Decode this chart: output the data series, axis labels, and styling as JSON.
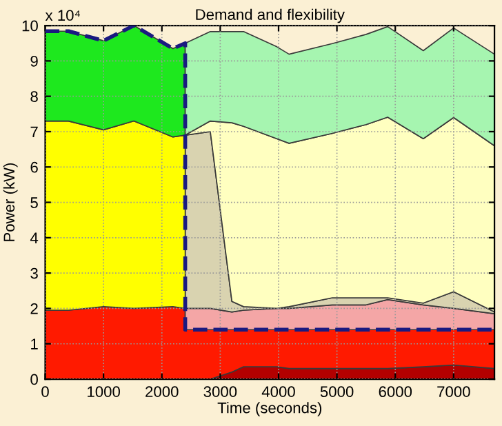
{
  "chart_data": {
    "type": "area",
    "title": "Demand and flexibility",
    "xlabel": "Time (seconds)",
    "ylabel": "Power (kW)",
    "annotations": [
      "x 10⁴"
    ],
    "stacked": true,
    "x": [
      0,
      400,
      1000,
      1520,
      2190,
      2400,
      2400,
      2830,
      3200,
      3400,
      3970,
      4180,
      4920,
      5500,
      5870,
      6480,
      7000,
      7700
    ],
    "series": [
      {
        "color": "#b30000",
        "values": [
          null,
          null,
          null,
          null,
          null,
          null,
          0,
          0,
          0.2,
          0.35,
          0.35,
          0.3,
          0.3,
          0.3,
          0.3,
          0.35,
          0.4,
          0.3
        ]
      },
      {
        "color": "#ff1a00",
        "values": [
          1.95,
          1.95,
          2.05,
          2.0,
          2.05,
          2.0,
          1.4,
          1.4,
          1.2,
          1.05,
          1.05,
          1.1,
          1.1,
          1.1,
          1.1,
          1.05,
          1.0,
          1.1
        ]
      },
      {
        "color": "#f4a6a6",
        "values": [
          null,
          null,
          null,
          null,
          null,
          null,
          0.6,
          0.6,
          0.5,
          0.55,
          0.6,
          0.6,
          0.7,
          0.7,
          0.85,
          0.7,
          0.6,
          0.45
        ]
      },
      {
        "color": "#d9d3b0",
        "values": [
          null,
          null,
          null,
          null,
          null,
          null,
          4.9,
          5.0,
          0.3,
          0.1,
          0.0,
          0.05,
          0.2,
          0.2,
          0.05,
          0.05,
          0.47,
          0.05
        ]
      },
      {
        "color": "#ffff00",
        "values": [
          5.35,
          5.35,
          5.0,
          5.3,
          4.8,
          4.9,
          null,
          null,
          null,
          null,
          null,
          null,
          null,
          null,
          null,
          null,
          null,
          null
        ]
      },
      {
        "color": "#ffffc0",
        "values": [
          null,
          null,
          null,
          null,
          null,
          null,
          0,
          0.3,
          5.05,
          5.1,
          4.8,
          4.62,
          4.65,
          4.9,
          5.11,
          4.65,
          4.93,
          4.7
        ]
      },
      {
        "color": "#1ee81e",
        "values": [
          2.54,
          2.54,
          2.52,
          2.7,
          2.5,
          2.6,
          null,
          null,
          null,
          null,
          null,
          null,
          null,
          null,
          null,
          null,
          null,
          null
        ]
      },
      {
        "color": "#a6f5b0",
        "values": [
          null,
          null,
          null,
          null,
          null,
          null,
          2.6,
          2.53,
          2.58,
          2.68,
          2.6,
          2.52,
          2.54,
          2.55,
          2.56,
          2.49,
          2.53,
          2.59
        ]
      },
      {
        "type": "line",
        "color": "#1a1a80",
        "line_style": "dashed",
        "x": [
          0,
          400,
          1000,
          1520,
          2190,
          2400,
          2400,
          7700
        ],
        "values": [
          9.84,
          9.84,
          9.57,
          10.0,
          9.35,
          9.5,
          1.4,
          1.4
        ]
      }
    ],
    "xlim": [
      0,
      7700
    ],
    "xticks": [
      0,
      1000,
      2000,
      3000,
      4000,
      5000,
      6000,
      7000
    ],
    "ylim": [
      0,
      10
    ],
    "yticks": [
      0,
      1,
      2,
      3,
      4,
      5,
      6,
      7,
      8,
      9,
      10
    ],
    "grid": true,
    "legend": false
  }
}
